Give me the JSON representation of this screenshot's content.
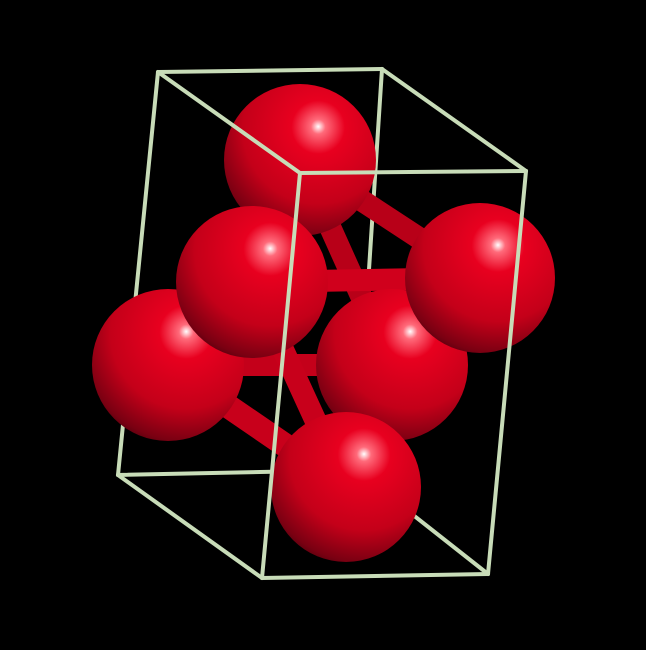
{
  "scene": {
    "background": "#000000",
    "atom_color": "#e0001e",
    "atom_dark": "#5a0010",
    "atom_highlight": "#ffffff",
    "bond_color": "#d4001c",
    "cell_color": "#c8dcb8",
    "atom_count": 6,
    "bond_count": 7
  }
}
